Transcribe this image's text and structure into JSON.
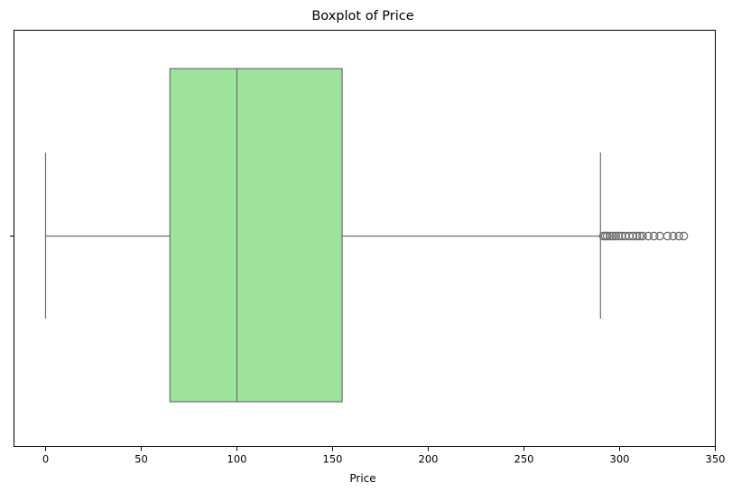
{
  "chart_data": {
    "type": "boxplot",
    "title": "Boxplot of Price",
    "xlabel": "Price",
    "ylabel": "",
    "xlim": [
      -16.5,
      350
    ],
    "xticks": [
      0,
      50,
      100,
      150,
      200,
      250,
      300,
      350
    ],
    "grid": false,
    "legend": "none",
    "colors": {
      "box_fill": "#9de39c",
      "line": "#6e6e6e"
    },
    "box": {
      "whisker_low": 0,
      "q1": 65,
      "median": 100,
      "q3": 155,
      "whisker_high": 290
    },
    "outliers": [
      291.5,
      292.5,
      293.5,
      295,
      296.5,
      298,
      299.5,
      301,
      303,
      305,
      307,
      309,
      310.5,
      312,
      315,
      318,
      321,
      325,
      328,
      331,
      333.5
    ]
  }
}
